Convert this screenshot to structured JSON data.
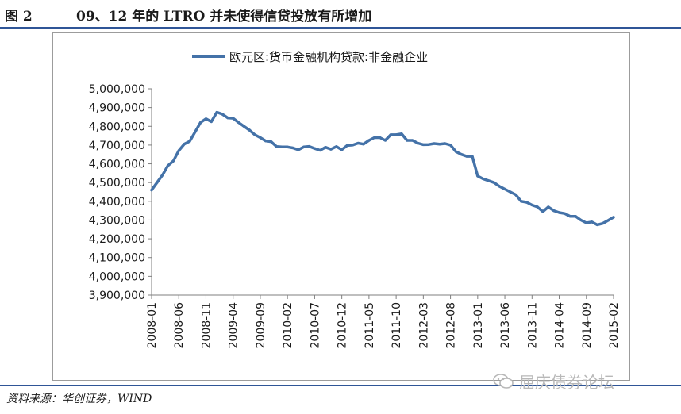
{
  "header": {
    "figure_label": "图 2",
    "title": "09、12 年的 LTRO 并未使得信贷投放有所增加"
  },
  "footer": {
    "source": "资料来源：华创证券，WIND"
  },
  "watermark": {
    "text": "屈庆债券论坛",
    "icon": "wechat-icon"
  },
  "chart_data": {
    "type": "line",
    "legend_position": "top",
    "ylim": [
      3900000,
      5000000
    ],
    "ytick_labels": [
      "5,000,000",
      "4,900,000",
      "4,800,000",
      "4,700,000",
      "4,600,000",
      "4,500,000",
      "4,400,000",
      "4,300,000",
      "4,200,000",
      "4,100,000",
      "4,000,000",
      "3,900,000"
    ],
    "xtick_labels": [
      "2008-01",
      "2008-06",
      "2008-11",
      "2009-04",
      "2009-09",
      "2010-02",
      "2010-07",
      "2010-12",
      "2011-05",
      "2011-10",
      "2012-03",
      "2012-08",
      "2013-01",
      "2013-06",
      "2013-11",
      "2014-04",
      "2014-09",
      "2015-02"
    ],
    "colors": {
      "line": "#4472a8",
      "frame": "#9c9c9c",
      "axis": "#7f7f7f"
    },
    "series": [
      {
        "name": "欧元区:货币金融机构贷款:非金融企业",
        "x": [
          "2008-01",
          "2008-02",
          "2008-03",
          "2008-04",
          "2008-05",
          "2008-06",
          "2008-07",
          "2008-08",
          "2008-09",
          "2008-10",
          "2008-11",
          "2008-12",
          "2009-01",
          "2009-02",
          "2009-03",
          "2009-04",
          "2009-05",
          "2009-06",
          "2009-07",
          "2009-08",
          "2009-09",
          "2009-10",
          "2009-11",
          "2009-12",
          "2010-01",
          "2010-02",
          "2010-03",
          "2010-04",
          "2010-05",
          "2010-06",
          "2010-07",
          "2010-08",
          "2010-09",
          "2010-10",
          "2010-11",
          "2010-12",
          "2011-01",
          "2011-02",
          "2011-03",
          "2011-04",
          "2011-05",
          "2011-06",
          "2011-07",
          "2011-08",
          "2011-09",
          "2011-10",
          "2011-11",
          "2011-12",
          "2012-01",
          "2012-02",
          "2012-03",
          "2012-04",
          "2012-05",
          "2012-06",
          "2012-07",
          "2012-08",
          "2012-09",
          "2012-10",
          "2012-11",
          "2012-12",
          "2013-01",
          "2013-02",
          "2013-03",
          "2013-04",
          "2013-05",
          "2013-06",
          "2013-07",
          "2013-08",
          "2013-09",
          "2013-10",
          "2013-11",
          "2013-12",
          "2014-01",
          "2014-02",
          "2014-03",
          "2014-04",
          "2014-05",
          "2014-06",
          "2014-07",
          "2014-08",
          "2014-09",
          "2014-10",
          "2014-11",
          "2014-12",
          "2015-01",
          "2015-02"
        ],
        "values": [
          4460000,
          4500000,
          4540000,
          4590000,
          4615000,
          4670000,
          4705000,
          4720000,
          4770000,
          4820000,
          4840000,
          4825000,
          4875000,
          4865000,
          4845000,
          4843000,
          4820000,
          4800000,
          4780000,
          4755000,
          4740000,
          4722000,
          4718000,
          4692000,
          4690000,
          4690000,
          4685000,
          4675000,
          4690000,
          4693000,
          4682000,
          4672000,
          4688000,
          4678000,
          4692000,
          4675000,
          4698000,
          4700000,
          4710000,
          4705000,
          4725000,
          4740000,
          4740000,
          4725000,
          4755000,
          4755000,
          4760000,
          4725000,
          4725000,
          4710000,
          4702000,
          4703000,
          4708000,
          4705000,
          4708000,
          4700000,
          4665000,
          4650000,
          4640000,
          4640000,
          4535000,
          4520000,
          4510000,
          4500000,
          4480000,
          4465000,
          4450000,
          4435000,
          4400000,
          4395000,
          4380000,
          4370000,
          4345000,
          4370000,
          4350000,
          4340000,
          4335000,
          4320000,
          4320000,
          4300000,
          4285000,
          4290000,
          4275000,
          4282000,
          4298000,
          4315000
        ]
      }
    ]
  }
}
